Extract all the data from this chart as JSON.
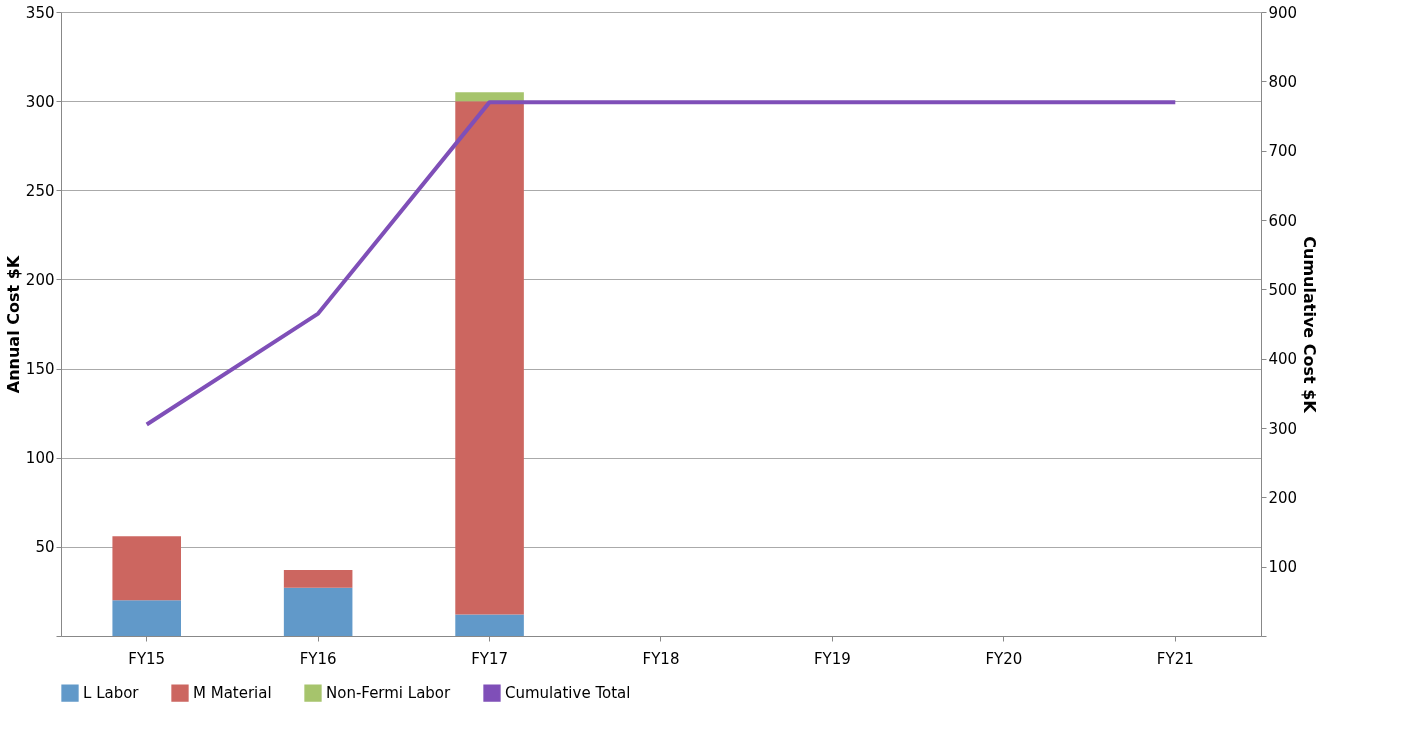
{
  "chart_data": {
    "type": "bar",
    "stacked": true,
    "categories": [
      "FY15",
      "FY16",
      "FY17",
      "FY18",
      "FY19",
      "FY20",
      "FY21"
    ],
    "ylabel": "Annual Cost $K",
    "y2label": "Cumulative Cost $K",
    "ylim": [
      0,
      350
    ],
    "yticks": [
      {
        "value": 0,
        "label": null
      },
      50,
      100,
      150,
      200,
      250,
      300,
      350
    ],
    "y2lim": [
      0,
      900
    ],
    "y2ticks": [
      {
        "value": 0,
        "label": null
      },
      100,
      200,
      300,
      400,
      500,
      600,
      700,
      800,
      900
    ],
    "grid": "y",
    "legend": "bottom",
    "marker": "none",
    "series": [
      {
        "name": "L Labor",
        "color": "#6199c9",
        "values": [
          20,
          27,
          12,
          null,
          null,
          null,
          null
        ]
      },
      {
        "name": "M Material",
        "color": "#cc6660",
        "values": [
          36,
          10,
          288,
          null,
          null,
          null,
          null
        ]
      },
      {
        "name": "Non-Fermi Labor",
        "color": "#a6c46c",
        "values": [
          0,
          0,
          5,
          null,
          null,
          null,
          null
        ]
      },
      {
        "name": "Cumulative Total",
        "color": "#7f4fb8",
        "type": "line",
        "axis": "y2",
        "values": [
          305,
          465,
          770,
          770,
          770,
          770,
          770
        ]
      }
    ]
  }
}
